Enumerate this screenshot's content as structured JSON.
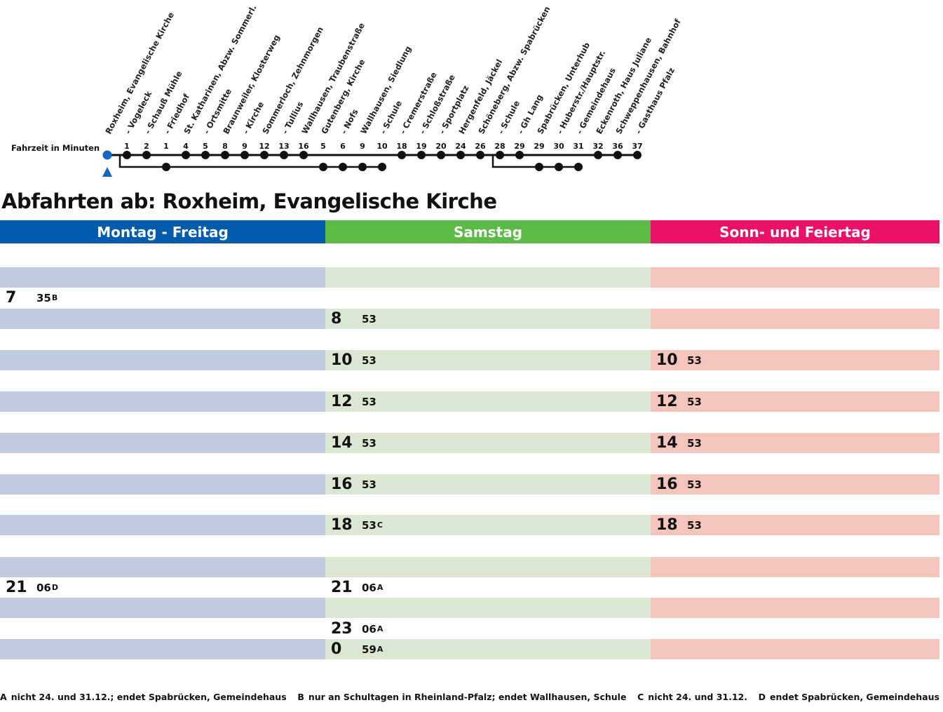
{
  "route": {
    "travel_time_label": "Fahrzeit in Minuten",
    "stops": [
      {
        "name": "Roxheim, Evangelische Kirche",
        "time": ""
      },
      {
        "name": "- Vogeleck",
        "time": "1"
      },
      {
        "name": "- Schauß Mühle",
        "time": "2"
      },
      {
        "name": "- Friedhof",
        "time": "1"
      },
      {
        "name": "St. Katharinen, Abzw. Sommerl.",
        "time": "4"
      },
      {
        "name": "- Ortsmitte",
        "time": "5"
      },
      {
        "name": "Braunweiler, Klosterweg",
        "time": "8"
      },
      {
        "name": "- Kirche",
        "time": "9"
      },
      {
        "name": "Sommerloch, Zehnmorgen",
        "time": "12"
      },
      {
        "name": "- Tullius",
        "time": "13"
      },
      {
        "name": "Wallhausen, Traubenstraße",
        "time": "16"
      },
      {
        "name": "Gutenberg, Kirche",
        "time": "5"
      },
      {
        "name": "- Nofs",
        "time": "6"
      },
      {
        "name": "Wallhausen, Siedlung",
        "time": "9"
      },
      {
        "name": "- Schule",
        "time": "10"
      },
      {
        "name": "- Cremerstraße",
        "time": "18"
      },
      {
        "name": "- Schloßstraße",
        "time": "19"
      },
      {
        "name": "- Sportplatz",
        "time": "20"
      },
      {
        "name": "Hergenfeld, Jäckel",
        "time": "24"
      },
      {
        "name": "Schöneberg, Abzw. Spabrücken",
        "time": "26"
      },
      {
        "name": "- Schule",
        "time": "28"
      },
      {
        "name": "- Gh Lang",
        "time": "29"
      },
      {
        "name": "Spabrücken, Unterhub",
        "time": "29"
      },
      {
        "name": "- Huberstr./Hauptstr.",
        "time": "30"
      },
      {
        "name": "- Gemeindehaus",
        "time": "31"
      },
      {
        "name": "Eckenroth, Haus Juliane",
        "time": "32"
      },
      {
        "name": "Schweppenhausen, Bahnhof",
        "time": "36"
      },
      {
        "name": "- Gasthaus Pfalz",
        "time": "37"
      }
    ]
  },
  "heading": "Abfahrten ab: Roxheim, Evangelische Kirche",
  "columns": [
    {
      "label": "Montag - Freitag",
      "header_color": "#005bac",
      "band_color": "#c0c9dd"
    },
    {
      "label": "Samstag",
      "header_color": "#5cba47",
      "band_color": "#dbe7d3"
    },
    {
      "label": "Sonn- und Feiertag",
      "header_color": "#ec1068",
      "band_color": "#f4c6bb"
    }
  ],
  "departures": {
    "weekday": [
      {
        "hour": "7",
        "minutes": "35",
        "note": "B"
      },
      {
        "hour": "21",
        "minutes": "06",
        "note": "D"
      }
    ],
    "saturday": [
      {
        "hour": "8",
        "minutes": "53",
        "note": ""
      },
      {
        "hour": "10",
        "minutes": "53",
        "note": ""
      },
      {
        "hour": "12",
        "minutes": "53",
        "note": ""
      },
      {
        "hour": "14",
        "minutes": "53",
        "note": ""
      },
      {
        "hour": "16",
        "minutes": "53",
        "note": ""
      },
      {
        "hour": "18",
        "minutes": "53",
        "note": "C"
      },
      {
        "hour": "21",
        "minutes": "06",
        "note": "A"
      },
      {
        "hour": "23",
        "minutes": "06",
        "note": "A"
      },
      {
        "hour": "0",
        "minutes": "59",
        "note": "A"
      }
    ],
    "sunday": [
      {
        "hour": "10",
        "minutes": "53",
        "note": ""
      },
      {
        "hour": "12",
        "minutes": "53",
        "note": ""
      },
      {
        "hour": "14",
        "minutes": "53",
        "note": ""
      },
      {
        "hour": "16",
        "minutes": "53",
        "note": ""
      },
      {
        "hour": "18",
        "minutes": "53",
        "note": ""
      }
    ]
  },
  "footnotes": [
    {
      "key": "A",
      "text": "nicht 24. und 31.12.; endet Spabrücken, Gemeindehaus"
    },
    {
      "key": "B",
      "text": "nur an Schultagen in Rheinland-Pfalz; endet Wallhausen, Schule"
    },
    {
      "key": "C",
      "text": "nicht 24. und 31.12."
    },
    {
      "key": "D",
      "text": "endet Spabrücken, Gemeindehaus"
    }
  ]
}
